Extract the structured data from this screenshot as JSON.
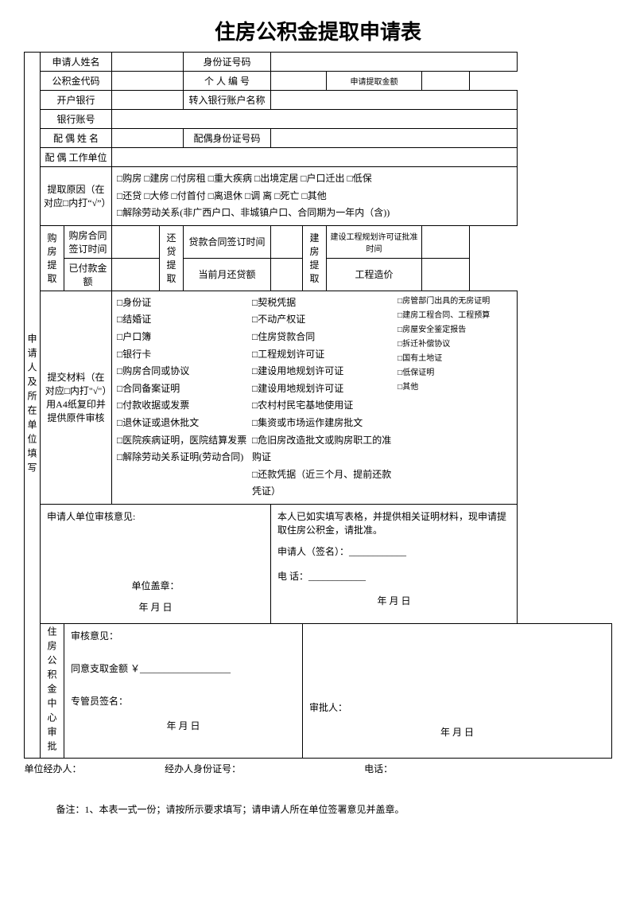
{
  "title": "住房公积金提取申请表",
  "vleft1": "申请人及所在单位填写",
  "vleft2": "住房公积金中心审批",
  "row1": {
    "l1": "申请人姓名",
    "l2": "身份证号码"
  },
  "row2": {
    "l1": "公积金代码",
    "l2": "个 人 编 号",
    "l3": "申请提取金额"
  },
  "row3": {
    "l1": "开户银行",
    "l2": "转入银行账户名称"
  },
  "row4": {
    "l1": "银行账号"
  },
  "row5": {
    "l1": "配 偶 姓 名",
    "l2": "配偶身份证号码"
  },
  "row6": {
    "l1": "配 偶 工作单位"
  },
  "reason": {
    "label": "提取原因（在对应□内打“√”）",
    "line1": "□购房 □建房 □付房租 □重大疾病 □出境定居 □户口迁出 □低保",
    "line2": "□还贷 □大修 □付首付 □离退休   □调 离   □死亡  □其他",
    "line3": "□解除劳动关系(非广西户口、非城镇户口、合同期为一年内（含))"
  },
  "sub": {
    "g1": "购房提取",
    "g1a": "购房合同签订时间",
    "g1b": "已付款金额",
    "g2": "还贷提取",
    "g2a": "贷款合同签订时间",
    "g2b": "当前月还贷额",
    "g3": "建房提取",
    "g3a": "建设工程规划许可证批准时间",
    "g3b": "工程造价"
  },
  "materials": {
    "label": "提交材料（在对应□内打\"√\"）用A4纸复印并提供原件审核",
    "c1": [
      "□身份证",
      "□结婚证",
      "□户口簿",
      "□银行卡",
      "□购房合同或协议",
      "□合同备案证明",
      "□付款收据或发票",
      "□退休证或退休批文",
      "□医院疾病证明，医院结算发票",
      "□解除劳动关系证明(劳动合同)"
    ],
    "c2": [
      "□契税凭据",
      "□不动产权证",
      "□住房贷款合同",
      "□工程规划许可证",
      "□建设用地规划许可证",
      "□建设用地规划许可证",
      "□农村村民宅基地使用证",
      "□集资或市场运作建房批文",
      "□危旧房改造批文或购房职工的准购证",
      "□还款凭据（近三个月、提前还款凭证）"
    ],
    "c3": [
      "□房管部门出具的无房证明",
      "□建房工程合同、工程预算",
      "□房屋安全鉴定报告",
      "□拆迁补偿协议",
      "□国有土地证",
      "□低保证明",
      "□其他"
    ]
  },
  "opinion1": {
    "title": "申请人单位审核意见:",
    "stamp": "单位盖章：",
    "date": "年  月  日"
  },
  "opinion2": {
    "line1": "本人已如实填写表格，并提供相关证明材料，现申请提取住房公积金，请批准。",
    "line2": "申请人（签名）：____________",
    "line3": "电    话：____________",
    "date": "年  月  日"
  },
  "audit": {
    "title": "审核意见：",
    "amount": "同意支取金额 ￥___________________",
    "sign1": "专管员签名：",
    "sign2": "审批人：",
    "date": "年     月    日"
  },
  "footer": {
    "a": "单位经办人：",
    "b": "经办人身份证号：",
    "c": "电话："
  },
  "note": "备注：1、本表一式一份；请按所示要求填写；请申请人所在单位签署意见并盖章。"
}
